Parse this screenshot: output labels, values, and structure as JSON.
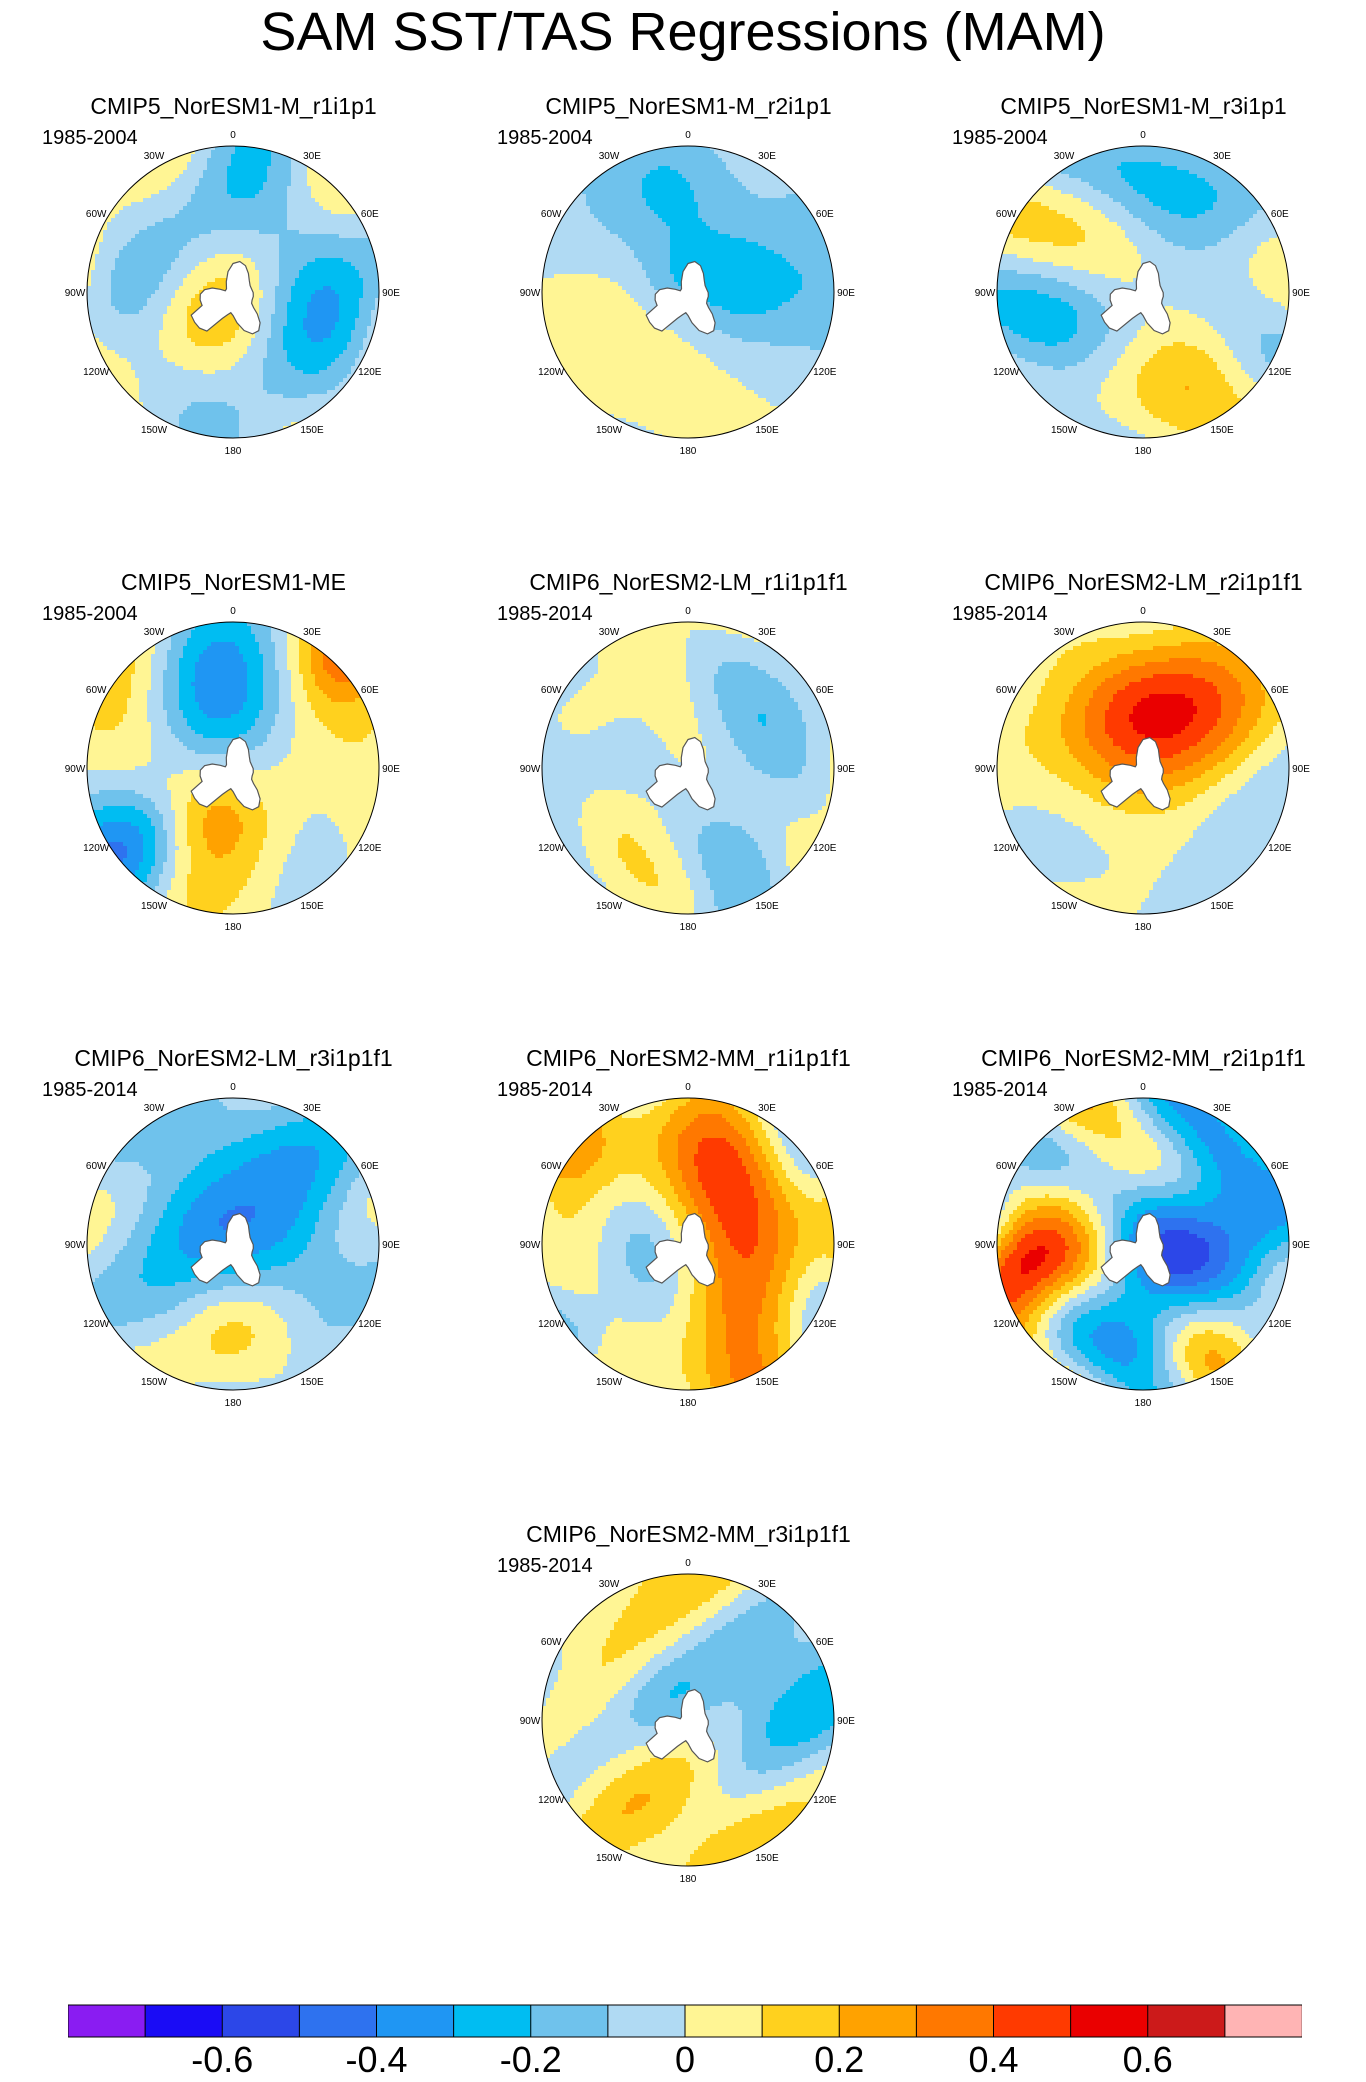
{
  "title": "SAM SST/TAS Regressions (MAM)",
  "lon_labels": [
    "0",
    "30E",
    "60E",
    "90E",
    "120E",
    "150E",
    "180",
    "150W",
    "120W",
    "90W",
    "60W",
    "30W"
  ],
  "colors": [
    "#8a1cf2",
    "#1a0cf5",
    "#2c47e8",
    "#2e72ef",
    "#1f96f3",
    "#00bdf2",
    "#6fc2ec",
    "#b0daf3",
    "#fff594",
    "#ffd11e",
    "#ffa200",
    "#ff7800",
    "#ff3a00",
    "#ea0000",
    "#cc1a1a",
    "#ffb4b4"
  ],
  "chart_data": {
    "type": "heatmap",
    "projection": "south-polar-stereographic",
    "variable": "SST/TAS regression on SAM index, MAM",
    "panels": [
      {
        "title": "CMIP5_NorESM1-M_r1i1p1",
        "period": "1985-2004"
      },
      {
        "title": "CMIP5_NorESM1-M_r2i1p1",
        "period": "1985-2004"
      },
      {
        "title": "CMIP5_NorESM1-M_r3i1p1",
        "period": "1985-2004"
      },
      {
        "title": "CMIP5_NorESM1-ME",
        "period": "1985-2004"
      },
      {
        "title": "CMIP6_NorESM2-LM_r1i1p1f1",
        "period": "1985-2014"
      },
      {
        "title": "CMIP6_NorESM2-LM_r2i1p1f1",
        "period": "1985-2014"
      },
      {
        "title": "CMIP6_NorESM2-LM_r3i1p1f1",
        "period": "1985-2014"
      },
      {
        "title": "CMIP6_NorESM2-MM_r1i1p1f1",
        "period": "1985-2014"
      },
      {
        "title": "CMIP6_NorESM2-MM_r2i1p1f1",
        "period": "1985-2014"
      },
      {
        "title": "CMIP6_NorESM2-MM_r3i1p1f1",
        "period": "1985-2014"
      }
    ],
    "colorbar": {
      "levels": [
        -0.7,
        -0.6,
        -0.5,
        -0.4,
        -0.3,
        -0.2,
        -0.1,
        0,
        0.1,
        0.2,
        0.3,
        0.4,
        0.5,
        0.6,
        0.7
      ],
      "labels": [
        "-0.6",
        "-0.4",
        "-0.2",
        "0",
        "0.2",
        "0.4",
        "0.6"
      ],
      "label_values": [
        -0.6,
        -0.4,
        -0.2,
        0,
        0.2,
        0.4,
        0.6
      ],
      "range": [
        -0.8,
        0.8
      ]
    }
  }
}
